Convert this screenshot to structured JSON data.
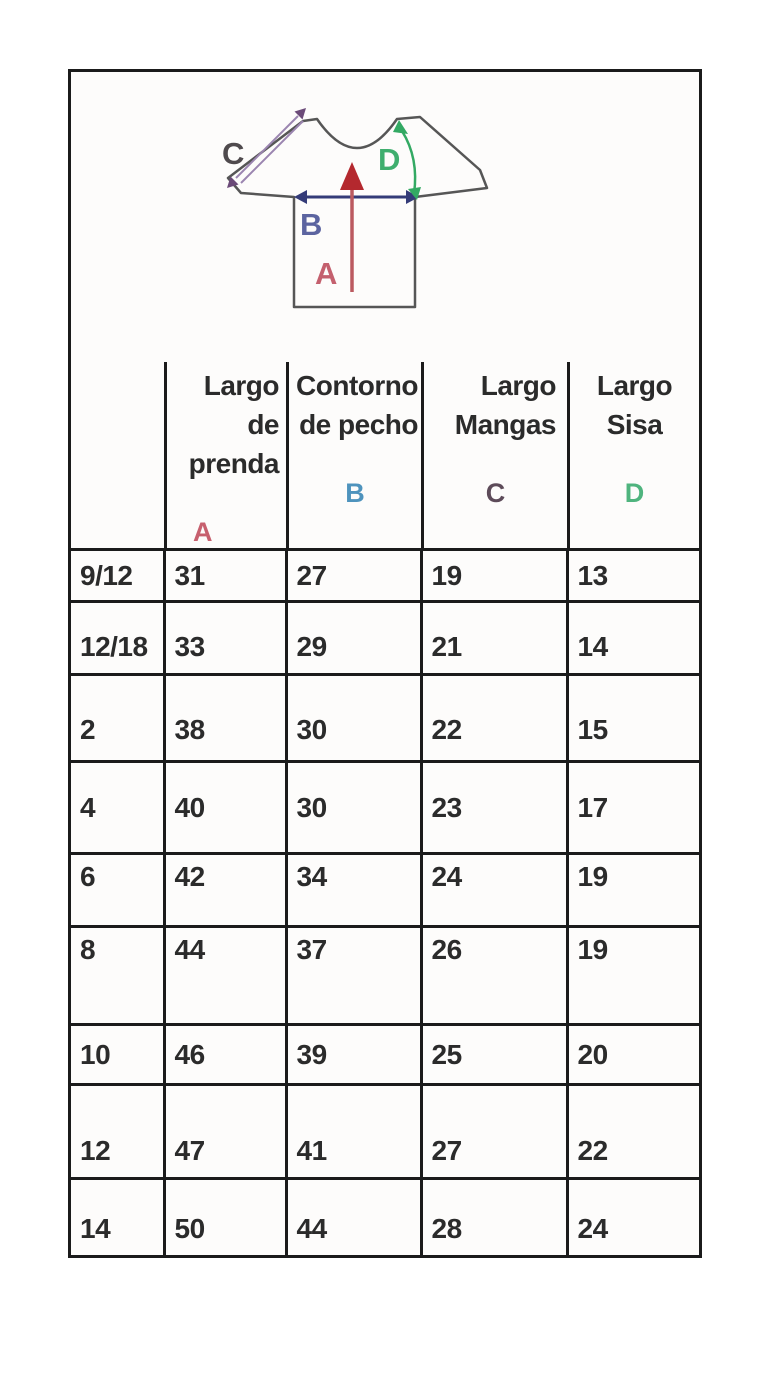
{
  "diagram": {
    "labels": {
      "a": "A",
      "b": "B",
      "c": "C",
      "d": "D"
    },
    "colors": {
      "outline": "#565656",
      "a_arrow": "#b4282e",
      "a_shaft": "#bb5a60",
      "a_label": "#c4606e",
      "b_arrow": "#343b78",
      "b_label": "#5c64a0",
      "c_line": "#9b85b0",
      "c_head": "#6b4a78",
      "c_label": "#4f4a4d",
      "d_line": "#33a963",
      "d_label": "#3fae6e"
    }
  },
  "table": {
    "border_color": "#1b1b1b",
    "columns": [
      {
        "line1": "Largo de",
        "line2": "prenda",
        "letter": "A",
        "letter_color": "#c7606e"
      },
      {
        "line1": "Contorno",
        "line2": "de pecho",
        "letter": "B",
        "letter_color": "#4e93bd"
      },
      {
        "line1": "Largo",
        "line2": "Mangas",
        "letter": "C",
        "letter_color": "#5d4b59"
      },
      {
        "line1": "Largo",
        "line2": "Sisa",
        "letter": "D",
        "letter_color": "#4fb47e"
      }
    ],
    "rows": [
      {
        "size": "9/12",
        "values": [
          "31",
          "27",
          "19",
          "13"
        ]
      },
      {
        "size": "12/18",
        "values": [
          "33",
          "29",
          "21",
          "14"
        ]
      },
      {
        "size": "2",
        "values": [
          "38",
          "30",
          "22",
          "15"
        ]
      },
      {
        "size": "4",
        "values": [
          "40",
          "30",
          "23",
          "17"
        ]
      },
      {
        "size": "6",
        "values": [
          "42",
          "34",
          "24",
          "19"
        ]
      },
      {
        "size": "8",
        "values": [
          "44",
          "37",
          "26",
          "19"
        ]
      },
      {
        "size": "10",
        "values": [
          "46",
          "39",
          "25",
          "20"
        ]
      },
      {
        "size": "12",
        "values": [
          "47",
          "41",
          "27",
          "22"
        ]
      },
      {
        "size": "14",
        "values": [
          "50",
          "44",
          "28",
          "24"
        ]
      }
    ]
  }
}
